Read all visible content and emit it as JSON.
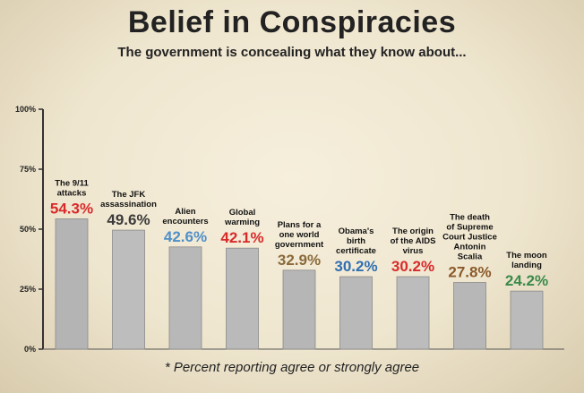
{
  "title": "Belief in Conspiracies",
  "subtitle": "The government is concealing what they know about...",
  "footnote": "* Percent reporting agree or strongly agree",
  "chart_data": {
    "type": "bar",
    "title": "Belief in Conspiracies",
    "subtitle": "The government is concealing what they know about...",
    "categories": [
      "The 9/11 attacks",
      "The JFK assassination",
      "Alien encounters",
      "Global warming",
      "Plans for a one world government",
      "Obama's birth certificate",
      "The origin of the AIDS virus",
      "The death of Supreme Court Justice Antonin Scalia",
      "The moon landing"
    ],
    "category_lines": [
      [
        "The 9/11",
        "attacks"
      ],
      [
        "The JFK",
        "assassination"
      ],
      [
        "Alien",
        "encounters"
      ],
      [
        "Global",
        "warming"
      ],
      [
        "Plans for a",
        "one world",
        "government"
      ],
      [
        "Obama's",
        "birth",
        "certificate"
      ],
      [
        "The origin",
        "of the AIDS",
        "virus"
      ],
      [
        "The death",
        "of Supreme",
        "Court Justice",
        "Antonin",
        "Scalia"
      ],
      [
        "The moon",
        "landing"
      ]
    ],
    "values": [
      54.3,
      49.6,
      42.6,
      42.1,
      32.9,
      30.2,
      30.2,
      27.8,
      24.2
    ],
    "value_labels": [
      "54.3%",
      "49.6%",
      "42.6%",
      "42.1%",
      "32.9%",
      "30.2%",
      "30.2%",
      "27.8%",
      "24.2%"
    ],
    "value_colors": [
      "#d92a2a",
      "#3a3a3a",
      "#4f8fc9",
      "#d92a2a",
      "#8a6a3a",
      "#2f6fb2",
      "#d92a2a",
      "#8a5a2a",
      "#3a8a4a"
    ],
    "bar_colors": [
      "#b4b4b4",
      "#bdbdbd",
      "#b8b8b8",
      "#bababa",
      "#b6b6b6",
      "#b9b9b9",
      "#bcbcbc",
      "#b7b7b7",
      "#bbbbbb"
    ],
    "y_ticks": [
      "0%",
      "25%",
      "50%",
      "75%",
      "100%"
    ],
    "ylim": [
      0,
      100
    ],
    "xlabel": "",
    "ylabel": "",
    "grid": false
  }
}
